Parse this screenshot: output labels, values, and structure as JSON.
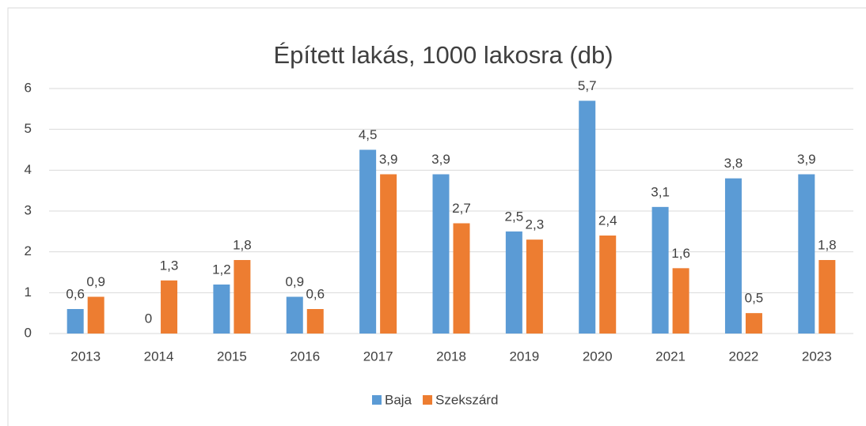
{
  "chart_data": {
    "type": "bar",
    "title": "Épített lakás, 1000 lakosra (db)",
    "categories": [
      "2013",
      "2014",
      "2015",
      "2016",
      "2017",
      "2018",
      "2019",
      "2020",
      "2021",
      "2022",
      "2023"
    ],
    "series": [
      {
        "name": "Baja",
        "color": "#5b9bd5",
        "values": [
          0.6,
          0,
          1.2,
          0.9,
          4.5,
          3.9,
          2.5,
          5.7,
          3.1,
          3.8,
          3.9
        ],
        "value_labels": [
          "0,6",
          "0",
          "1,2",
          "0,9",
          "4,5",
          "3,9",
          "2,5",
          "5,7",
          "3,1",
          "3,8",
          "3,9"
        ]
      },
      {
        "name": "Szekszárd",
        "color": "#ed7d31",
        "values": [
          0.9,
          1.3,
          1.8,
          0.6,
          3.9,
          2.7,
          2.3,
          2.4,
          1.6,
          0.5,
          1.8
        ],
        "value_labels": [
          "0,9",
          "1,3",
          "1,8",
          "0,6",
          "3,9",
          "2,7",
          "2,3",
          "2,4",
          "1,6",
          "0,5",
          "1,8"
        ]
      }
    ],
    "ylim": [
      0,
      6
    ],
    "yticks": [
      0,
      1,
      2,
      3,
      4,
      5,
      6
    ],
    "grid": true,
    "legend": "bottom"
  }
}
